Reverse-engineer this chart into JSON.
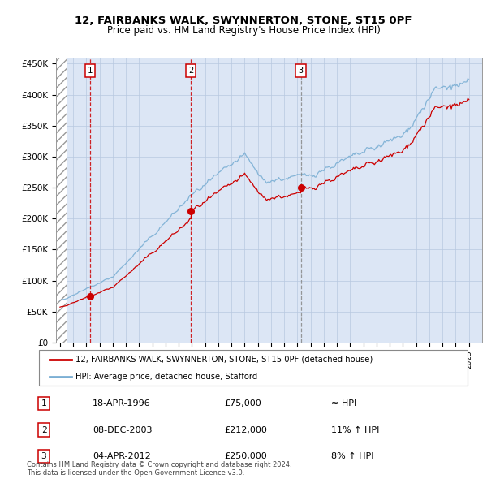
{
  "title_line1": "12, FAIRBANKS WALK, SWYNNERTON, STONE, ST15 0PF",
  "title_line2": "Price paid vs. HM Land Registry's House Price Index (HPI)",
  "yticks": [
    0,
    50000,
    100000,
    150000,
    200000,
    250000,
    300000,
    350000,
    400000,
    450000
  ],
  "ytick_labels": [
    "£0",
    "£50K",
    "£100K",
    "£150K",
    "£200K",
    "£250K",
    "£300K",
    "£350K",
    "£400K",
    "£450K"
  ],
  "ylim": [
    0,
    460000
  ],
  "sale_year_nums": [
    1996.29,
    2003.92,
    2012.25
  ],
  "sale_prices": [
    75000,
    212000,
    250000
  ],
  "sale_labels": [
    "1",
    "2",
    "3"
  ],
  "sale_vline_styles": [
    "red_dashed",
    "red_dashed",
    "gray_dashed"
  ],
  "legend_label_red": "12, FAIRBANKS WALK, SWYNNERTON, STONE, ST15 0PF (detached house)",
  "legend_label_blue": "HPI: Average price, detached house, Stafford",
  "table_rows": [
    [
      "1",
      "18-APR-1996",
      "£75,000",
      "≈ HPI"
    ],
    [
      "2",
      "08-DEC-2003",
      "£212,000",
      "11% ↑ HPI"
    ],
    [
      "3",
      "04-APR-2012",
      "£250,000",
      "8% ↑ HPI"
    ]
  ],
  "footnote": "Contains HM Land Registry data © Crown copyright and database right 2024.\nThis data is licensed under the Open Government Licence v3.0.",
  "bg_color": "#dce6f5",
  "red_line_color": "#cc0000",
  "blue_line_color": "#7bafd4",
  "grid_color": "#b8c8e0",
  "vline_red_color": "#cc0000",
  "vline_gray_color": "#888888"
}
